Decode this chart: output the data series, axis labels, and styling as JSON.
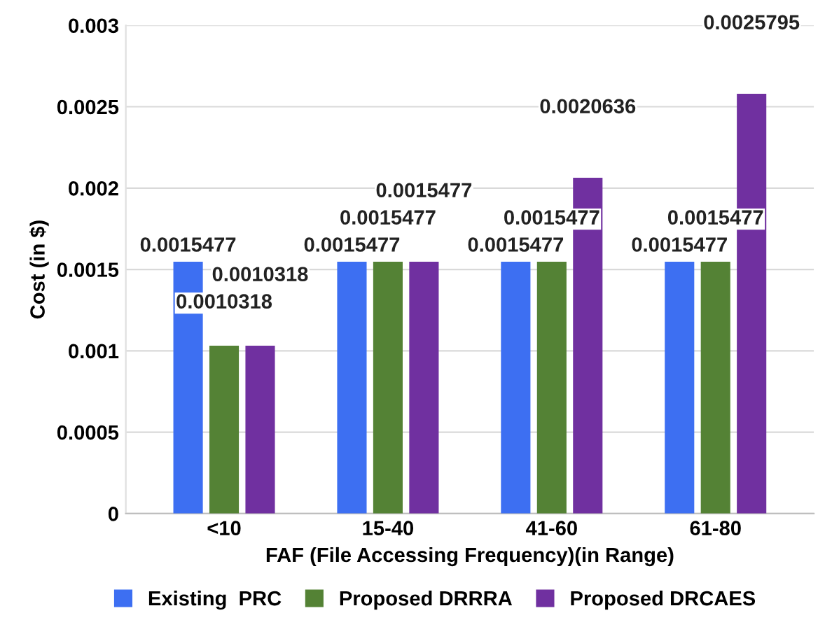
{
  "chart_data": {
    "type": "bar",
    "xlabel": "FAF (File Accessing Frequency)(in Range)",
    "ylabel": "Cost (in $)",
    "categories": [
      "<10",
      "15-40",
      "41-60",
      "61-80"
    ],
    "series": [
      {
        "name": "Existing  PRC",
        "color": "#3d6ff2",
        "values": [
          0.0015477,
          0.0015477,
          0.0015477,
          0.0015477
        ]
      },
      {
        "name": "Proposed DRRRA",
        "color": "#548235",
        "values": [
          0.0010318,
          0.0015477,
          0.0015477,
          0.0015477
        ]
      },
      {
        "name": "Proposed DRCAES",
        "color": "#7030a0",
        "values": [
          0.0010318,
          0.0015477,
          0.0020636,
          0.0025795
        ]
      }
    ],
    "ylim": [
      0,
      0.003
    ],
    "yticks": [
      0,
      0.0005,
      0.001,
      0.0015,
      0.002,
      0.0025,
      0.003
    ],
    "grid": "y",
    "legend": "bottom",
    "data_labels": true
  }
}
